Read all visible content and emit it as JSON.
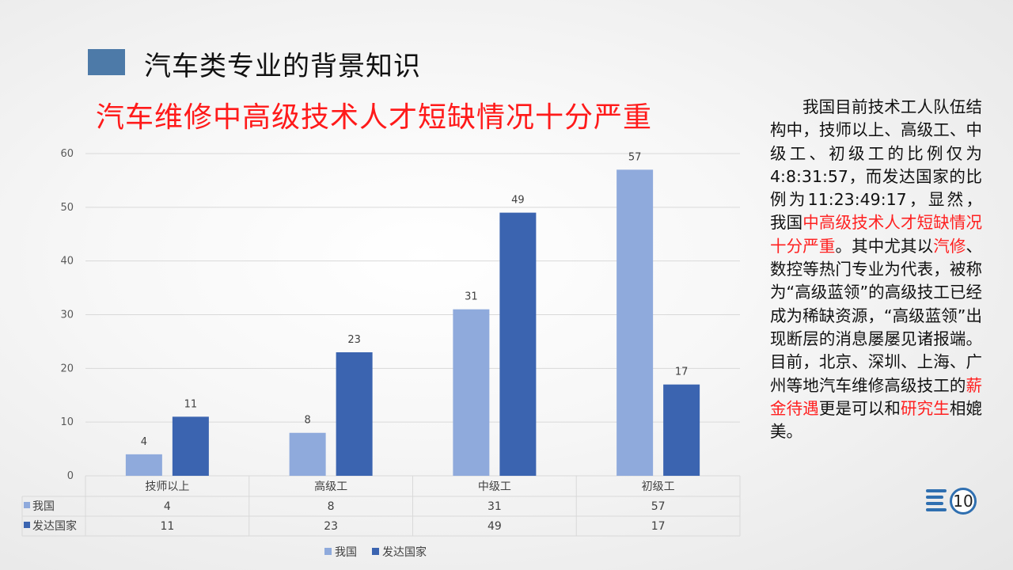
{
  "header": {
    "section_title": "汽车类专业的背景知识",
    "chart_title": "汽车维修中高级技术人才短缺情况十分严重"
  },
  "colors": {
    "series_1": "#8faadc",
    "series_2": "#3b64b0",
    "title_red": "#ff1a1a",
    "accent_block": "#4d7aa8"
  },
  "chart_data": {
    "type": "bar",
    "categories": [
      "技师以上",
      "高级工",
      "中级工",
      "初级工"
    ],
    "series": [
      {
        "name": "我国",
        "values": [
          4,
          8,
          31,
          57
        ]
      },
      {
        "name": "发达国家",
        "values": [
          11,
          23,
          49,
          17
        ]
      }
    ],
    "ylim": [
      0,
      60
    ],
    "yticks": [
      0,
      10,
      20,
      30,
      40,
      50,
      60
    ],
    "grid": true,
    "legend": "bottom",
    "data_table": true
  },
  "side_text": {
    "t1": "我国目前技术工人队伍结构中，技师以上、高级工、中级工、初级工的比例仅为4:8:31:57，而发达国家的比例为11:23:49:17，显然，我国",
    "t2_red": "中高级技术人才短缺情况十分严重",
    "t3": "。其中尤其以",
    "t4_red": "汽修",
    "t5": "、数控等热门专业为代表，被称为“高级蓝领”的高级技工已经成为稀缺资源，“高级蓝领”出现断层的消息屡屡见诸报端。目前，北京、深圳、上海、广州等地汽车维修高级技工的",
    "t6_red": "薪金待遇",
    "t7": "更是可以和",
    "t8_red": "研究生",
    "t9": "相媲美。"
  },
  "page_number": "10"
}
